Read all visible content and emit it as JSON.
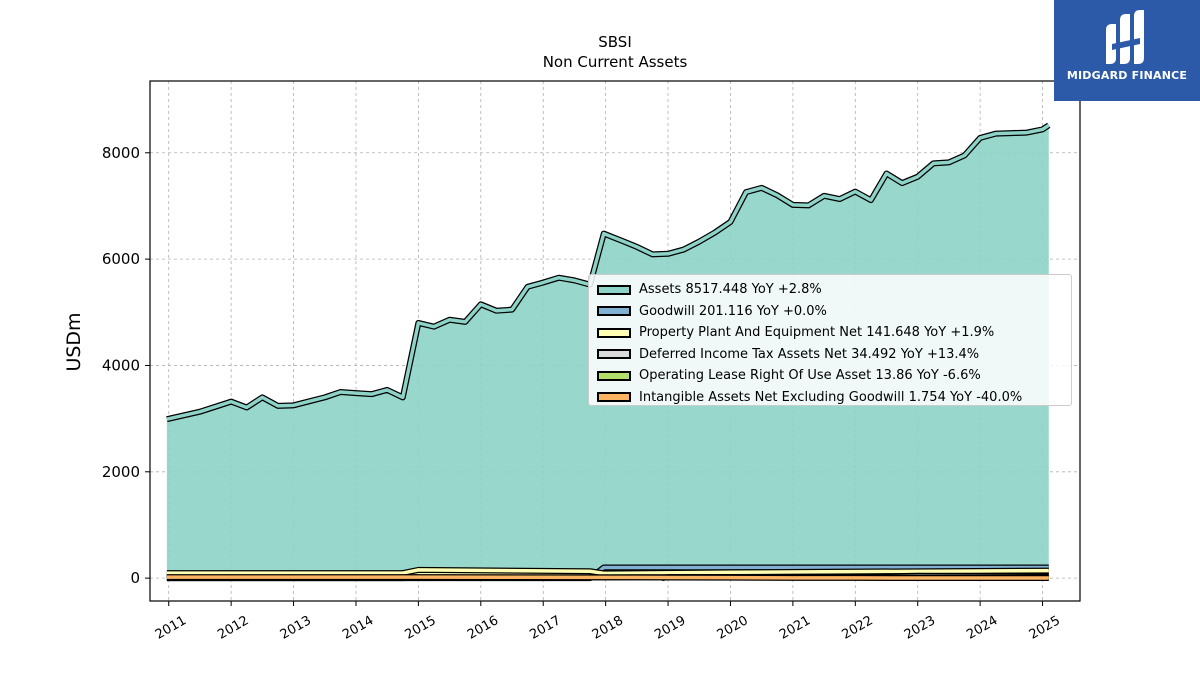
{
  "header": {
    "ticker": "SBSI",
    "subtitle": "Non Current  Assets"
  },
  "logo": {
    "text": "MIDGARD FINANCE",
    "bg_color": "#2c5aa8"
  },
  "chart_data": {
    "type": "area",
    "title": "SBSI",
    "subtitle": "Non Current  Assets",
    "xlabel": "",
    "ylabel": "USDm",
    "x_ticks": [
      "2011",
      "2012",
      "2013",
      "2014",
      "2015",
      "2016",
      "2017",
      "2018",
      "2019",
      "2020",
      "2021",
      "2022",
      "2023",
      "2024",
      "2025"
    ],
    "y_ticks": [
      "0",
      "2000",
      "4000",
      "6000",
      "8000"
    ],
    "xlim": [
      2010.7,
      2025.6
    ],
    "ylim": [
      -430,
      9350
    ],
    "grid": true,
    "legend_position": "center-right",
    "series": [
      {
        "name": "Assets  8517.448 YoY +2.8%",
        "color": "#8dd3c7",
        "x": [
          2010.97,
          2011.5,
          2012.0,
          2012.25,
          2012.5,
          2012.75,
          2013.0,
          2013.5,
          2013.75,
          2014.0,
          2014.25,
          2014.5,
          2014.75,
          2015.0,
          2015.25,
          2015.5,
          2015.75,
          2016.0,
          2016.25,
          2016.5,
          2016.75,
          2017.0,
          2017.25,
          2017.5,
          2017.75,
          2017.97,
          2018.25,
          2018.5,
          2018.75,
          2019.0,
          2019.25,
          2019.5,
          2019.75,
          2020.0,
          2020.25,
          2020.5,
          2020.75,
          2021.0,
          2021.25,
          2021.5,
          2021.75,
          2022.0,
          2022.25,
          2022.5,
          2022.75,
          2023.0,
          2023.25,
          2023.5,
          2023.75,
          2024.0,
          2024.25,
          2024.5,
          2024.75,
          2025.0,
          2025.1
        ],
        "y": [
          2990,
          3130,
          3320,
          3210,
          3400,
          3240,
          3250,
          3400,
          3500,
          3480,
          3460,
          3540,
          3400,
          4800,
          4730,
          4860,
          4820,
          5150,
          5030,
          5050,
          5480,
          5560,
          5650,
          5600,
          5520,
          6480,
          6350,
          6230,
          6090,
          6100,
          6180,
          6330,
          6500,
          6700,
          7260,
          7340,
          7200,
          7020,
          7010,
          7190,
          7130,
          7270,
          7110,
          7610,
          7430,
          7550,
          7800,
          7820,
          7950,
          8280,
          8360,
          8370,
          8380,
          8440,
          8517
        ]
      },
      {
        "name": "Goodwill  201.116 YoY +0.0%",
        "color": "#80b1d3",
        "x": [
          2010.97,
          2014.75,
          2015.0,
          2017.75,
          2017.97,
          2025.1
        ],
        "y": [
          0,
          0,
          0,
          0,
          201,
          201
        ]
      },
      {
        "name": "Property Plant And Equipment Net  141.648 YoY +1.9%",
        "color": "#ffffb3",
        "x": [
          2010.97,
          2014.75,
          2015.0,
          2017.75,
          2017.97,
          2020.0,
          2025.1
        ],
        "y": [
          95,
          95,
          155,
          130,
          90,
          110,
          142
        ]
      },
      {
        "name": "Deferred Income Tax Assets Net  34.492 YoY +13.4%",
        "color": "#d9d9d9",
        "x": [
          2010.97,
          2014.75,
          2015.0,
          2017.97,
          2022.0,
          2023.0,
          2025.1
        ],
        "y": [
          0,
          0,
          10,
          15,
          25,
          45,
          34
        ]
      },
      {
        "name": "Operating Lease Right Of Use Asset  13.86 YoY -6.6%",
        "color": "#b3de69",
        "x": [
          2018.9,
          2019.0,
          2020.0,
          2021.0,
          2022.0,
          2023.0,
          2025.1
        ],
        "y": [
          0,
          20,
          18,
          17,
          16,
          15,
          14
        ]
      },
      {
        "name": "Intangible Assets Net Excluding Goodwill  1.754 YoY -40.0%",
        "color": "#fdb462",
        "x": [
          2010.97,
          2015.0,
          2018.0,
          2019.0,
          2020.0,
          2021.0,
          2022.0,
          2023.0,
          2025.1
        ],
        "y": [
          20,
          18,
          15,
          12,
          9,
          6,
          4,
          3,
          2
        ]
      }
    ]
  }
}
